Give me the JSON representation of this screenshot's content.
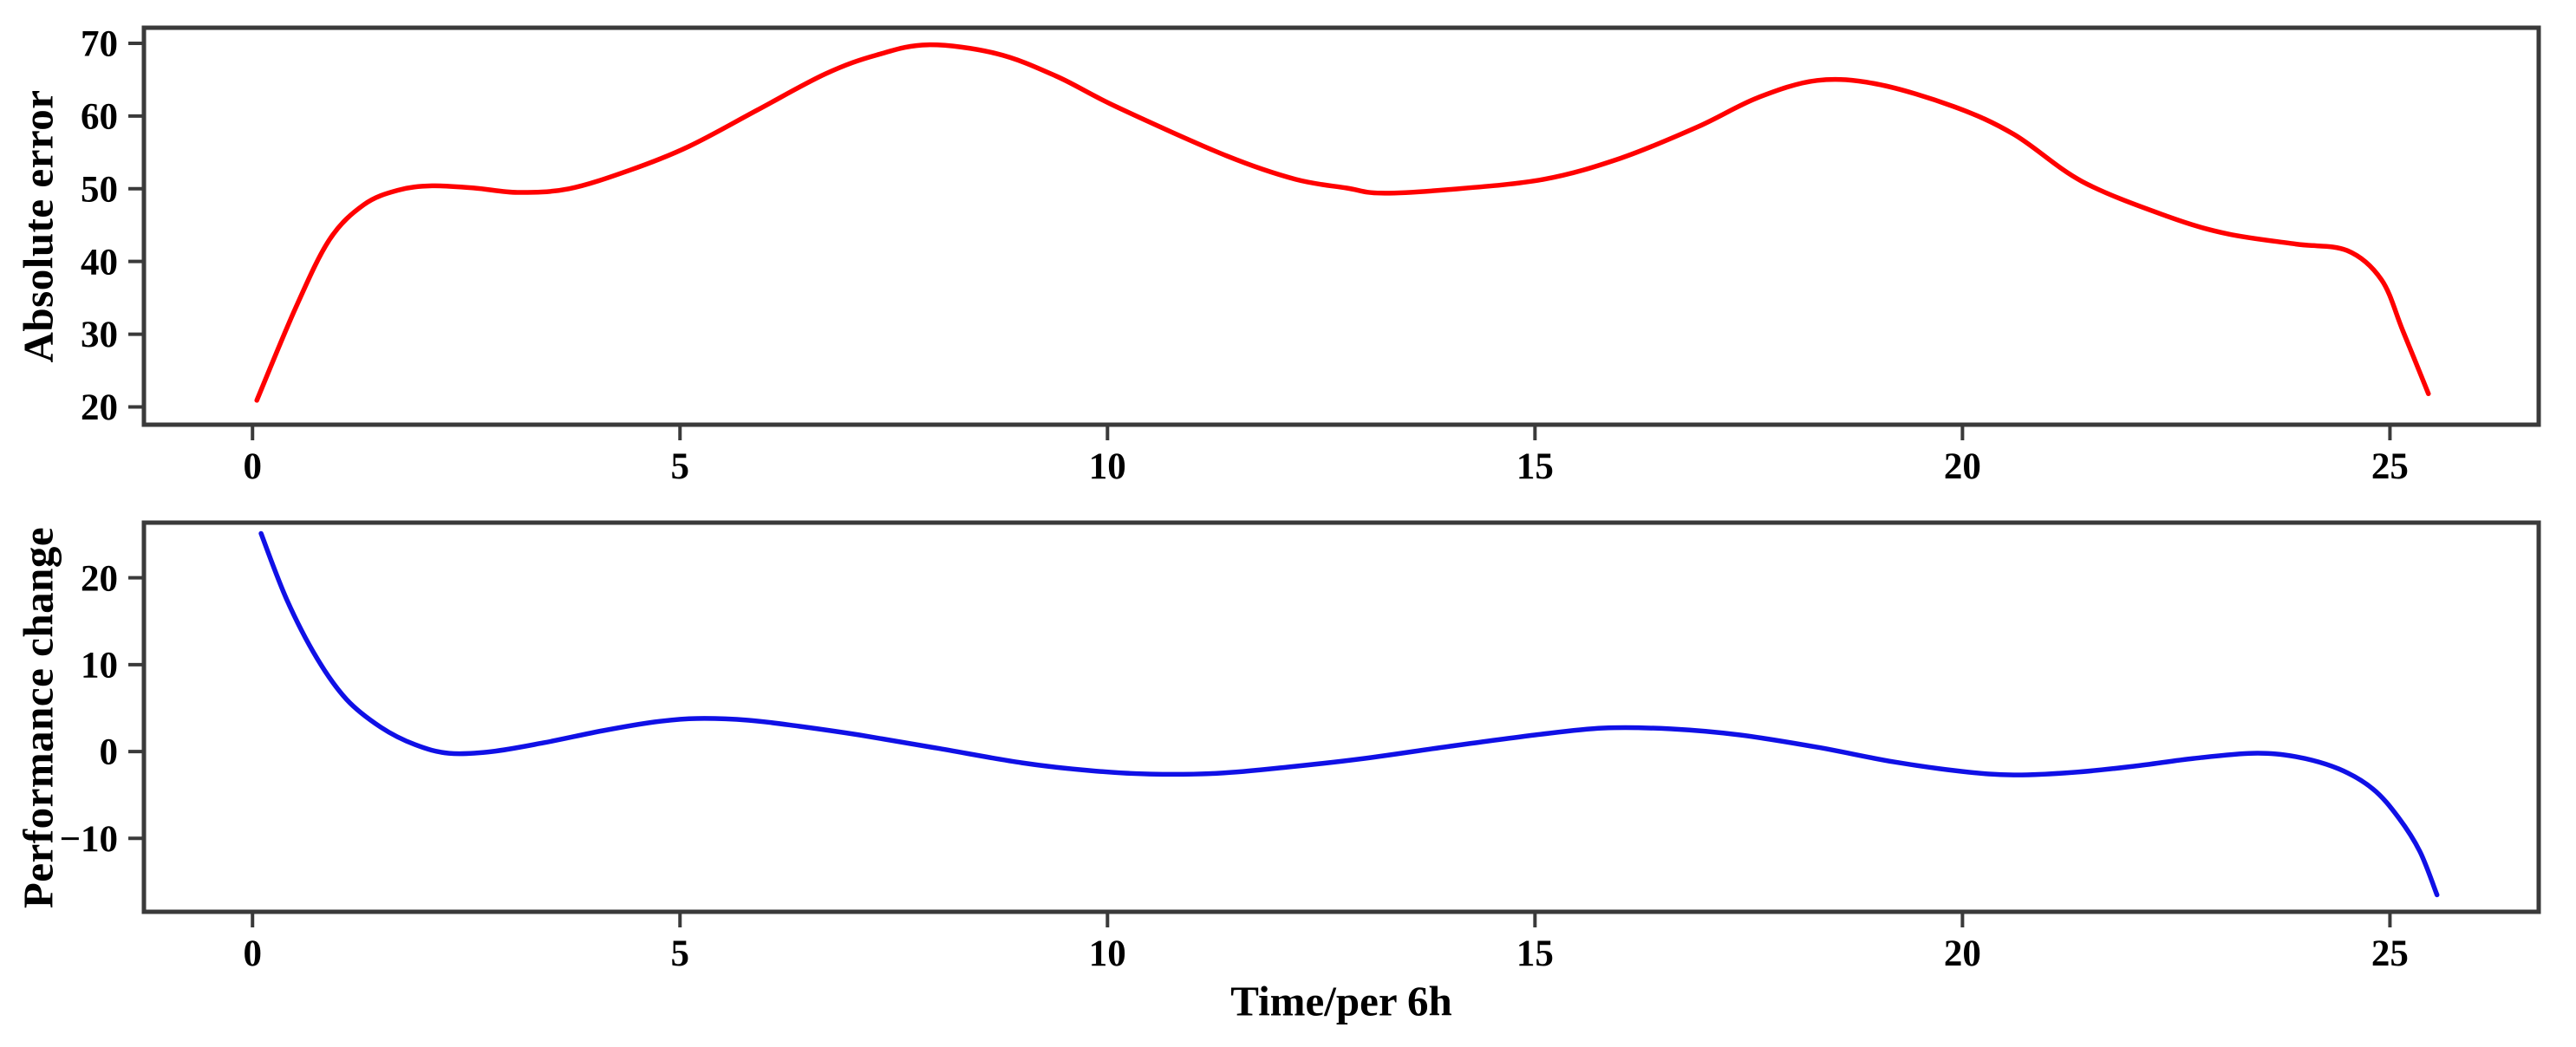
{
  "figure": {
    "background": "#ffffff",
    "axis_color": "#3a3a3a",
    "tick_label_color": "#000000",
    "spine_width": 5,
    "tick_length": 18
  },
  "chart_data": [
    {
      "type": "line",
      "title": "",
      "xlabel": "",
      "ylabel": "Absolute error",
      "grid": false,
      "legend": "none",
      "xlim": [
        -1.27,
        26.74
      ],
      "ylim": [
        17.55,
        72.15
      ],
      "x_ticks": {
        "values": [
          0,
          5,
          10,
          15,
          20,
          25
        ],
        "labels": [
          "0",
          "5",
          "10",
          "15",
          "20",
          "25"
        ]
      },
      "y_ticks": {
        "values": [
          20,
          30,
          40,
          50,
          60,
          70
        ],
        "labels": [
          "20",
          "30",
          "40",
          "50",
          "60",
          "70"
        ]
      },
      "series": [
        {
          "name": "Absolute error",
          "color": "#ff0000",
          "points": [
            [
              0.05,
              20.9
            ],
            [
              0.5,
              33.5
            ],
            [
              0.9,
              43.0
            ],
            [
              1.3,
              47.8
            ],
            [
              1.7,
              49.8
            ],
            [
              2.1,
              50.4
            ],
            [
              2.6,
              50.1
            ],
            [
              3.1,
              49.5
            ],
            [
              3.7,
              50.0
            ],
            [
              4.4,
              52.5
            ],
            [
              5.1,
              55.8
            ],
            [
              5.9,
              60.8
            ],
            [
              6.7,
              65.8
            ],
            [
              7.3,
              68.4
            ],
            [
              7.9,
              69.8
            ],
            [
              8.7,
              68.6
            ],
            [
              9.4,
              65.5
            ],
            [
              10.1,
              61.3
            ],
            [
              11.4,
              54.5
            ],
            [
              12.2,
              51.3
            ],
            [
              12.8,
              50.1
            ],
            [
              13.2,
              49.4
            ],
            [
              14.0,
              49.9
            ],
            [
              15.1,
              51.3
            ],
            [
              16.0,
              54.2
            ],
            [
              16.9,
              58.5
            ],
            [
              17.6,
              62.5
            ],
            [
              18.3,
              64.9
            ],
            [
              19.0,
              64.4
            ],
            [
              19.9,
              61.3
            ],
            [
              20.6,
              57.5
            ],
            [
              21.4,
              51.0
            ],
            [
              22.4,
              46.2
            ],
            [
              23.1,
              43.8
            ],
            [
              23.9,
              42.4
            ],
            [
              24.5,
              41.5
            ],
            [
              24.9,
              37.5
            ],
            [
              25.15,
              30.5
            ],
            [
              25.45,
              21.8
            ]
          ]
        }
      ]
    },
    {
      "type": "line",
      "title": "",
      "xlabel": "Time/per 6h",
      "ylabel": "Performance change",
      "grid": false,
      "legend": "none",
      "xlim": [
        -1.27,
        26.74
      ],
      "ylim": [
        -18.45,
        26.35
      ],
      "x_ticks": {
        "values": [
          0,
          5,
          10,
          15,
          20,
          25
        ],
        "labels": [
          "0",
          "5",
          "10",
          "15",
          "20",
          "25"
        ]
      },
      "y_ticks": {
        "values": [
          -10,
          0,
          10,
          20
        ],
        "labels": [
          "−10",
          "0",
          "10",
          "20"
        ]
      },
      "series": [
        {
          "name": "Performance change",
          "color": "#1010e6",
          "points": [
            [
              0.1,
              25.1
            ],
            [
              0.4,
              17.5
            ],
            [
              0.75,
              10.8
            ],
            [
              1.1,
              6.0
            ],
            [
              1.5,
              2.8
            ],
            [
              1.9,
              0.8
            ],
            [
              2.3,
              -0.2
            ],
            [
              2.8,
              0.0
            ],
            [
              3.4,
              1.0
            ],
            [
              4.1,
              2.4
            ],
            [
              4.7,
              3.4
            ],
            [
              5.2,
              3.8
            ],
            [
              5.8,
              3.6
            ],
            [
              6.4,
              2.9
            ],
            [
              7.1,
              1.9
            ],
            [
              8.0,
              0.4
            ],
            [
              9.0,
              -1.3
            ],
            [
              9.8,
              -2.2
            ],
            [
              10.5,
              -2.6
            ],
            [
              11.3,
              -2.5
            ],
            [
              12.1,
              -1.8
            ],
            [
              13.0,
              -0.8
            ],
            [
              14.0,
              0.6
            ],
            [
              15.0,
              1.9
            ],
            [
              15.8,
              2.7
            ],
            [
              16.6,
              2.6
            ],
            [
              17.4,
              1.9
            ],
            [
              18.3,
              0.5
            ],
            [
              19.2,
              -1.2
            ],
            [
              20.0,
              -2.3
            ],
            [
              20.6,
              -2.7
            ],
            [
              21.3,
              -2.4
            ],
            [
              22.0,
              -1.7
            ],
            [
              22.7,
              -0.8
            ],
            [
              23.4,
              -0.2
            ],
            [
              23.9,
              -0.6
            ],
            [
              24.4,
              -2.0
            ],
            [
              24.8,
              -4.3
            ],
            [
              25.1,
              -7.6
            ],
            [
              25.35,
              -11.5
            ],
            [
              25.55,
              -16.5
            ]
          ]
        }
      ]
    }
  ]
}
